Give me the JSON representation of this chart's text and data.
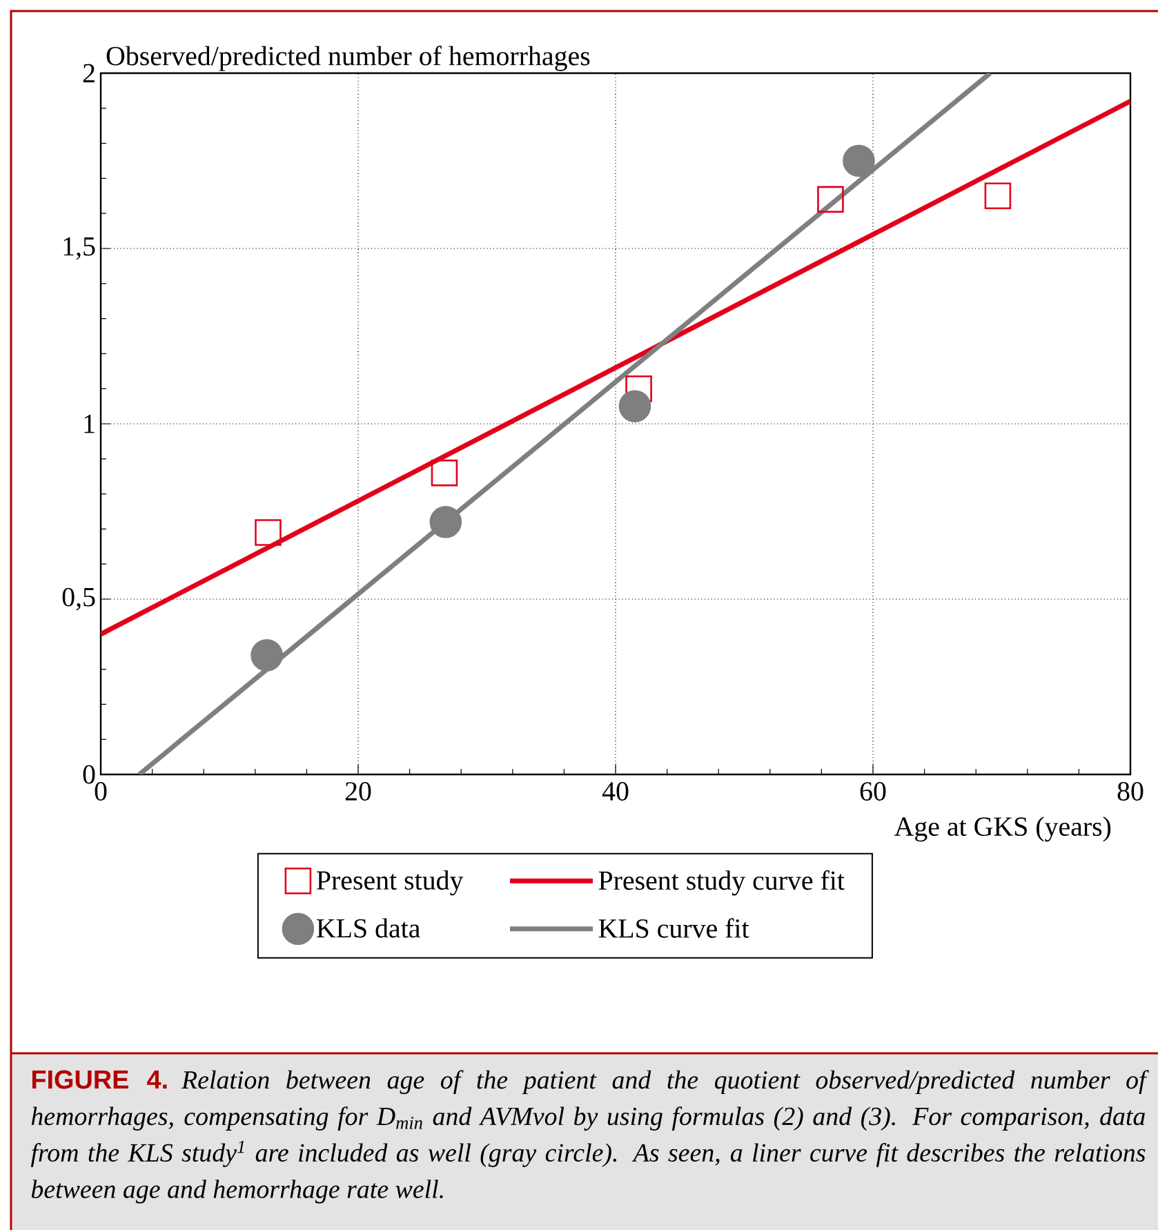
{
  "chart_data": {
    "type": "scatter",
    "xlabel": "Age at GKS (years)",
    "ylabel": "Observed/predicted number of hemorrhages",
    "xlim": [
      0,
      80
    ],
    "xticks": [
      0,
      20,
      40,
      60,
      80
    ],
    "ylim": [
      0,
      2
    ],
    "yticks": [
      0,
      {
        "value": 0.5,
        "label": "0,5"
      },
      1,
      {
        "value": 1.5,
        "label": "1,5"
      },
      2
    ],
    "grid": true,
    "legend": "bottom",
    "series": [
      {
        "name": "Present study",
        "marker": "square",
        "color": "#e3001b",
        "x": [
          13.0,
          26.7,
          41.8,
          56.7,
          69.7
        ],
        "values": [
          0.69,
          0.86,
          1.1,
          1.64,
          1.65
        ]
      },
      {
        "name": "Present study curve fit",
        "type": "line",
        "marker": "none",
        "color": "#e3001b",
        "x": [
          0,
          80
        ],
        "values": [
          0.4,
          1.92
        ]
      },
      {
        "name": "KLS data",
        "marker": "circle",
        "color": "#7f7f7f",
        "x": [
          12.9,
          26.8,
          41.5,
          58.9
        ],
        "values": [
          0.34,
          0.72,
          1.05,
          1.75
        ]
      },
      {
        "name": "KLS curve fit",
        "type": "line",
        "marker": "none",
        "color": "#7f7f7f",
        "x": [
          3.0,
          69.1
        ],
        "values": [
          0,
          2
        ]
      }
    ],
    "annotations": [
      "FIGURE 4.",
      "Relation between age of the patient and the quotient observed/predicted number of hemorrhages, compensating for D$_{min}$ and AVMvol by using formulas (2) and (3). For comparison, data from the KLS study$^{1}$ are included as well (gray circle). As seen, a liner curve fit describes the relations between age and hemorrhage rate well."
    ]
  }
}
